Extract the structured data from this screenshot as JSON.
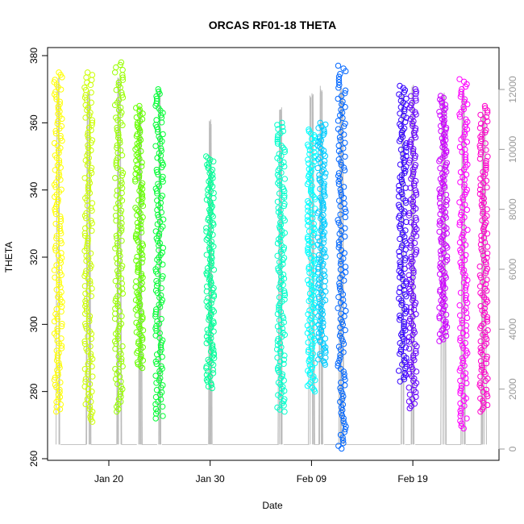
{
  "chart_data": {
    "type": "scatter",
    "title": "ORCAS RF01-18 THETA",
    "xlabel": "Date",
    "ylabel": "THETA",
    "x_axis": {
      "type": "date",
      "ticks": [
        {
          "date": "2016-01-20",
          "label": "Jan 20"
        },
        {
          "date": "2016-01-30",
          "label": "Jan 30"
        },
        {
          "date": "2016-02-09",
          "label": "Feb 09"
        },
        {
          "date": "2016-02-19",
          "label": "Feb 19"
        }
      ]
    },
    "y_axis": {
      "ylim": [
        260,
        380
      ],
      "ticks": [
        260,
        280,
        300,
        320,
        340,
        360,
        380
      ]
    },
    "y2_axis": {
      "ylim": [
        0,
        12000
      ],
      "ticks": [
        0,
        2000,
        4000,
        6000,
        8000,
        10000,
        12000
      ],
      "color": "#999999"
    },
    "grid": false,
    "series": [
      {
        "date": "2016-01-15",
        "theta_min": 274,
        "theta_max": 375,
        "color": "#FFFF00",
        "alt_min": 150,
        "alt_max": 12500
      },
      {
        "date": "2016-01-18",
        "theta_min": 271,
        "theta_max": 375,
        "color": "#CCFF00",
        "alt_min": 150,
        "alt_max": 12000
      },
      {
        "date": "2016-01-21",
        "theta_min": 274,
        "theta_max": 378,
        "color": "#99FF00",
        "alt_min": 150,
        "alt_max": 12500
      },
      {
        "date": "2016-01-23",
        "theta_min": 287,
        "theta_max": 365,
        "color": "#66FF00",
        "alt_min": 150,
        "alt_max": 11500
      },
      {
        "date": "2016-01-25",
        "theta_min": 272,
        "theta_max": 370,
        "color": "#00FF33",
        "alt_min": 150,
        "alt_max": 12000
      },
      {
        "date": "2016-01-30",
        "theta_min": 281,
        "theta_max": 350,
        "color": "#00FF99",
        "alt_min": 150,
        "alt_max": 11000
      },
      {
        "date": "2016-02-06",
        "theta_min": 274,
        "theta_max": 360,
        "color": "#00FFCC",
        "alt_min": 150,
        "alt_max": 11500
      },
      {
        "date": "2016-02-09",
        "theta_min": 280,
        "theta_max": 358,
        "color": "#00FFFF",
        "alt_min": 150,
        "alt_max": 12000
      },
      {
        "date": "2016-02-10",
        "theta_min": 288,
        "theta_max": 360,
        "color": "#00CCFF",
        "alt_min": 150,
        "alt_max": 12200
      },
      {
        "date": "2016-02-12",
        "theta_min": 263,
        "theta_max": 377,
        "color": "#0066FF",
        "alt_min": 150,
        "alt_max": 12200
      },
      {
        "date": "2016-02-18",
        "theta_min": 283,
        "theta_max": 371,
        "color": "#3300FF",
        "alt_min": 150,
        "alt_max": 12000
      },
      {
        "date": "2016-02-19",
        "theta_min": 275,
        "theta_max": 370,
        "color": "#6600FF",
        "alt_min": 150,
        "alt_max": 12200
      },
      {
        "date": "2016-02-22",
        "theta_min": 295,
        "theta_max": 368,
        "color": "#CC00FF",
        "alt_min": 150,
        "alt_max": 12000
      },
      {
        "date": "2016-02-24",
        "theta_min": 269,
        "theta_max": 373,
        "color": "#FF00FF",
        "alt_min": 150,
        "alt_max": 12000
      },
      {
        "date": "2016-02-26",
        "theta_min": 274,
        "theta_max": 365,
        "color": "#FF00CC",
        "alt_min": 150,
        "alt_max": 11500
      }
    ]
  }
}
